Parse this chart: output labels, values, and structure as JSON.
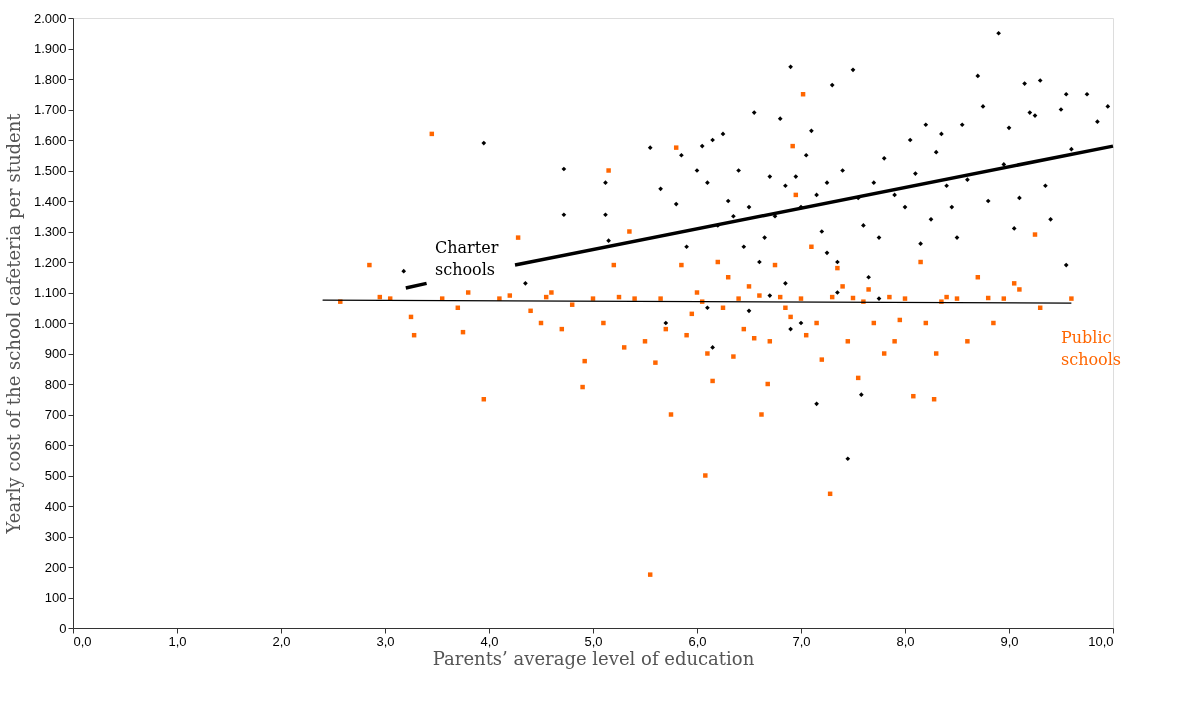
{
  "chart_data": {
    "type": "scatter",
    "xlabel": "Parents’ average level of education",
    "ylabel": "Yearly cost of the school cafeteria per student",
    "xlim": [
      0,
      10
    ],
    "ylim": [
      0,
      2000
    ],
    "xticks": [
      {
        "value": 0,
        "label": "0,0"
      },
      {
        "value": 1,
        "label": "1,0"
      },
      {
        "value": 2,
        "label": "2,0"
      },
      {
        "value": 3,
        "label": "3,0"
      },
      {
        "value": 4,
        "label": "4,0"
      },
      {
        "value": 5,
        "label": "5,0"
      },
      {
        "value": 6,
        "label": "6,0"
      },
      {
        "value": 7,
        "label": "7,0"
      },
      {
        "value": 8,
        "label": "8,0"
      },
      {
        "value": 9,
        "label": "9,0"
      },
      {
        "value": 10,
        "label": "10,0"
      }
    ],
    "yticks": [
      0,
      100,
      200,
      300,
      400,
      500,
      600,
      700,
      800,
      900,
      {
        "value": 1000,
        "label": "1.000"
      },
      {
        "value": 1100,
        "label": "1.100"
      },
      {
        "value": 1200,
        "label": "1.200"
      },
      {
        "value": 1300,
        "label": "1.300"
      },
      {
        "value": 1400,
        "label": "1.400"
      },
      {
        "value": 1500,
        "label": "1.500"
      },
      {
        "value": 1600,
        "label": "1.600"
      },
      {
        "value": 1700,
        "label": "1.700"
      },
      {
        "value": 1800,
        "label": "1.800"
      },
      {
        "value": 1900,
        "label": "1.900"
      },
      {
        "value": 2000,
        "label": "2.000"
      }
    ],
    "grid": false,
    "legend": false,
    "series": [
      {
        "name": "Public schools",
        "type": "scatter",
        "marker": "square",
        "color": "#ff6600",
        "x": [
          2.57,
          2.85,
          2.95,
          3.05,
          3.25,
          3.28,
          3.45,
          3.55,
          3.7,
          3.75,
          3.8,
          3.95,
          4.1,
          4.2,
          4.28,
          4.4,
          4.5,
          4.6,
          4.7,
          4.8,
          4.9,
          4.92,
          5.0,
          5.1,
          5.15,
          5.2,
          5.3,
          5.35,
          5.4,
          5.5,
          5.55,
          5.6,
          5.7,
          5.75,
          5.8,
          5.85,
          5.9,
          6.0,
          6.05,
          6.08,
          6.1,
          6.15,
          6.2,
          6.25,
          6.3,
          6.35,
          6.45,
          6.55,
          6.62,
          6.68,
          6.75,
          6.85,
          6.92,
          6.95,
          7.02,
          7.1,
          7.15,
          7.2,
          7.28,
          7.35,
          7.45,
          7.55,
          7.6,
          7.65,
          7.7,
          7.8,
          7.9,
          8.0,
          8.08,
          8.15,
          8.2,
          8.28,
          8.3,
          8.35,
          8.5,
          8.6,
          8.7,
          8.85,
          8.95,
          9.05,
          9.1,
          9.25,
          9.3,
          9.6,
          6.4,
          6.6,
          6.8,
          7.0,
          7.3,
          7.5,
          7.85,
          8.4,
          8.8,
          5.25,
          4.55,
          5.65,
          6.5,
          7.4,
          6.9,
          7.95,
          5.95,
          6.7,
          7.05
        ],
        "values": [
          1070,
          1190,
          1085,
          1080,
          1020,
          960,
          1620,
          1080,
          1050,
          970,
          1100,
          750,
          1080,
          1090,
          1280,
          1040,
          1000,
          1100,
          980,
          1060,
          790,
          875,
          1080,
          1000,
          1500,
          1190,
          920,
          1300,
          1080,
          940,
          175,
          870,
          980,
          700,
          1575,
          1190,
          960,
          1100,
          1070,
          500,
          900,
          810,
          1200,
          1050,
          1150,
          890,
          980,
          950,
          700,
          800,
          1190,
          1050,
          1580,
          1420,
          1750,
          1250,
          1000,
          880,
          440,
          1180,
          940,
          820,
          1070,
          1110,
          1000,
          900,
          940,
          1080,
          760,
          1200,
          1000,
          750,
          900,
          1070,
          1080,
          940,
          1150,
          1000,
          1080,
          1130,
          1110,
          1290,
          1050,
          1080,
          1080,
          1090,
          1085,
          1080,
          1085,
          1082,
          1085,
          1085,
          1082,
          1085,
          1085,
          1080,
          1120,
          1120,
          1020,
          1010,
          1030,
          940,
          960
        ]
      },
      {
        "name": "Charter schools",
        "type": "scatter",
        "marker": "diamond",
        "color": "#000000",
        "x": [
          3.95,
          4.72,
          4.72,
          3.18,
          4.35,
          5.12,
          5.12,
          5.15,
          5.55,
          5.65,
          5.8,
          5.85,
          6.0,
          6.05,
          6.1,
          6.15,
          6.2,
          6.25,
          6.3,
          6.4,
          6.45,
          6.5,
          6.55,
          6.6,
          6.65,
          6.7,
          6.75,
          6.8,
          6.85,
          6.9,
          6.95,
          7.0,
          7.05,
          7.1,
          7.15,
          7.2,
          7.25,
          7.3,
          7.35,
          7.4,
          7.5,
          7.55,
          7.6,
          7.7,
          7.75,
          7.8,
          7.9,
          8.0,
          8.05,
          8.1,
          8.2,
          8.25,
          8.3,
          8.35,
          8.4,
          8.5,
          8.55,
          8.6,
          8.7,
          8.75,
          8.8,
          8.9,
          8.95,
          9.0,
          9.05,
          9.1,
          9.15,
          9.2,
          9.25,
          9.3,
          9.35,
          9.4,
          9.5,
          9.55,
          9.55,
          9.6,
          9.75,
          9.85,
          9.95,
          7.45,
          7.58,
          7.15,
          6.15,
          6.5,
          7.0,
          7.75,
          6.1,
          6.7,
          5.9,
          6.35,
          6.85,
          7.25,
          7.65,
          8.15,
          8.45,
          5.7,
          6.9,
          7.35
        ],
        "values": [
          1590,
          1505,
          1355,
          1170,
          1130,
          1460,
          1355,
          1270,
          1575,
          1440,
          1390,
          1550,
          1500,
          1580,
          1460,
          1600,
          1320,
          1620,
          1400,
          1500,
          1250,
          1380,
          1690,
          1200,
          1280,
          1480,
          1350,
          1670,
          1130,
          1840,
          1480,
          1380,
          1550,
          1630,
          1420,
          1300,
          1460,
          1780,
          1200,
          1500,
          1830,
          1410,
          1320,
          1460,
          1280,
          1540,
          1420,
          1380,
          1600,
          1490,
          1650,
          1340,
          1560,
          1620,
          1450,
          1280,
          1650,
          1470,
          1810,
          1710,
          1400,
          1950,
          1520,
          1640,
          1310,
          1410,
          1785,
          1690,
          1680,
          1795,
          1450,
          1340,
          1700,
          1750,
          1190,
          1570,
          1750,
          1660,
          1710,
          555,
          765,
          735,
          920,
          1040,
          1000,
          1080,
          1050,
          1090,
          1250,
          1350,
          1450,
          1230,
          1150,
          1260,
          1380,
          1000,
          980,
          1100
        ]
      },
      {
        "type": "line",
        "color": "#000000",
        "line_style": "solid",
        "x": [
          2.4,
          9.6
        ],
        "values": [
          1075,
          1065
        ]
      },
      {
        "type": "line",
        "color": "#000000",
        "line_style": "solid",
        "x": [
          3.2,
          3.4
        ],
        "values": [
          1115,
          1130
        ]
      },
      {
        "type": "line",
        "color": "#000000",
        "line_style": "solid",
        "x": [
          4.25,
          10.0
        ],
        "values": [
          1190,
          1580
        ]
      }
    ]
  }
}
